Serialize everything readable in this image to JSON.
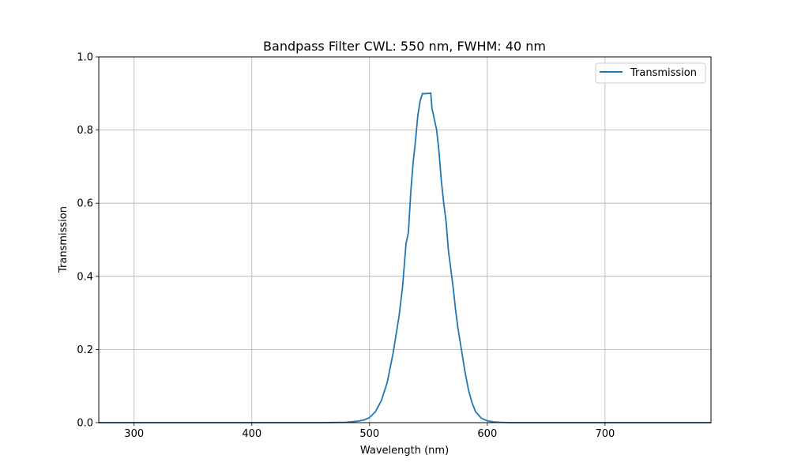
{
  "chart_data": {
    "type": "line",
    "title": "Bandpass Filter CWL: 550 nm, FWHM: 40 nm",
    "xlabel": "Wavelength (nm)",
    "ylabel": "Transmission",
    "xlim": [
      270,
      790
    ],
    "ylim": [
      0,
      1
    ],
    "xticks": [
      300,
      400,
      500,
      600,
      700
    ],
    "yticks": [
      0.0,
      0.2,
      0.4,
      0.6,
      0.8,
      1.0
    ],
    "xtick_labels": [
      "300",
      "400",
      "500",
      "600",
      "700"
    ],
    "ytick_labels": [
      "0.0",
      "0.2",
      "0.4",
      "0.6",
      "0.8",
      "1.0"
    ],
    "grid": true,
    "legend_position": "top-right",
    "series": [
      {
        "name": "Transmission",
        "color": "#1f77b4",
        "x": [
          270,
          300,
          400,
          460,
          480,
          490,
          495,
          500,
          505,
          510,
          515,
          520,
          525,
          528,
          531,
          533,
          535,
          537,
          539,
          541,
          543,
          545,
          547,
          548,
          550,
          552,
          553,
          555,
          557,
          559,
          561,
          563,
          565,
          567,
          569,
          571,
          573,
          575,
          578,
          581,
          584,
          587,
          590,
          595,
          600,
          605,
          610,
          620,
          640,
          700,
          790
        ],
        "y": [
          0.0,
          0.0,
          0.0,
          0.0,
          0.001,
          0.004,
          0.007,
          0.014,
          0.03,
          0.06,
          0.11,
          0.19,
          0.29,
          0.37,
          0.49,
          0.52,
          0.63,
          0.71,
          0.77,
          0.84,
          0.88,
          0.9,
          0.899,
          0.9,
          0.9,
          0.901,
          0.86,
          0.83,
          0.8,
          0.74,
          0.66,
          0.6,
          0.55,
          0.47,
          0.42,
          0.37,
          0.31,
          0.26,
          0.2,
          0.14,
          0.09,
          0.055,
          0.03,
          0.012,
          0.005,
          0.002,
          0.001,
          0.0,
          0.0,
          0.0,
          0.0
        ]
      }
    ]
  }
}
